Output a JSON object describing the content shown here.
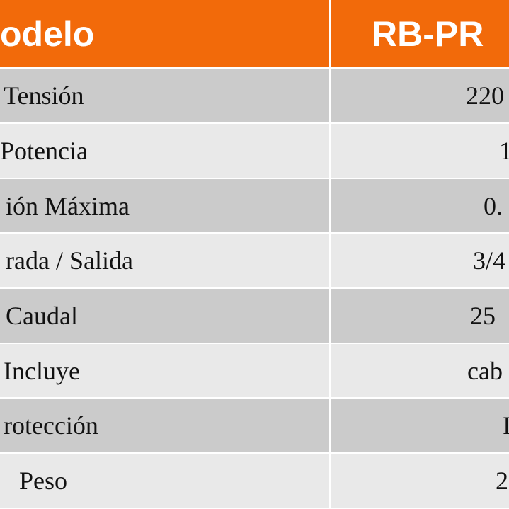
{
  "table": {
    "header": [
      "odelo",
      "RB-PR"
    ],
    "rows": [
      [
        "Tensión",
        "220"
      ],
      [
        "Potencia",
        "1"
      ],
      [
        "ión Máxima",
        "0."
      ],
      [
        "rada / Salida",
        "3/4"
      ],
      [
        "Caudal",
        "25"
      ],
      [
        "Incluye",
        "cab"
      ],
      [
        "rotección",
        "I"
      ],
      [
        "Peso",
        "2"
      ]
    ]
  }
}
